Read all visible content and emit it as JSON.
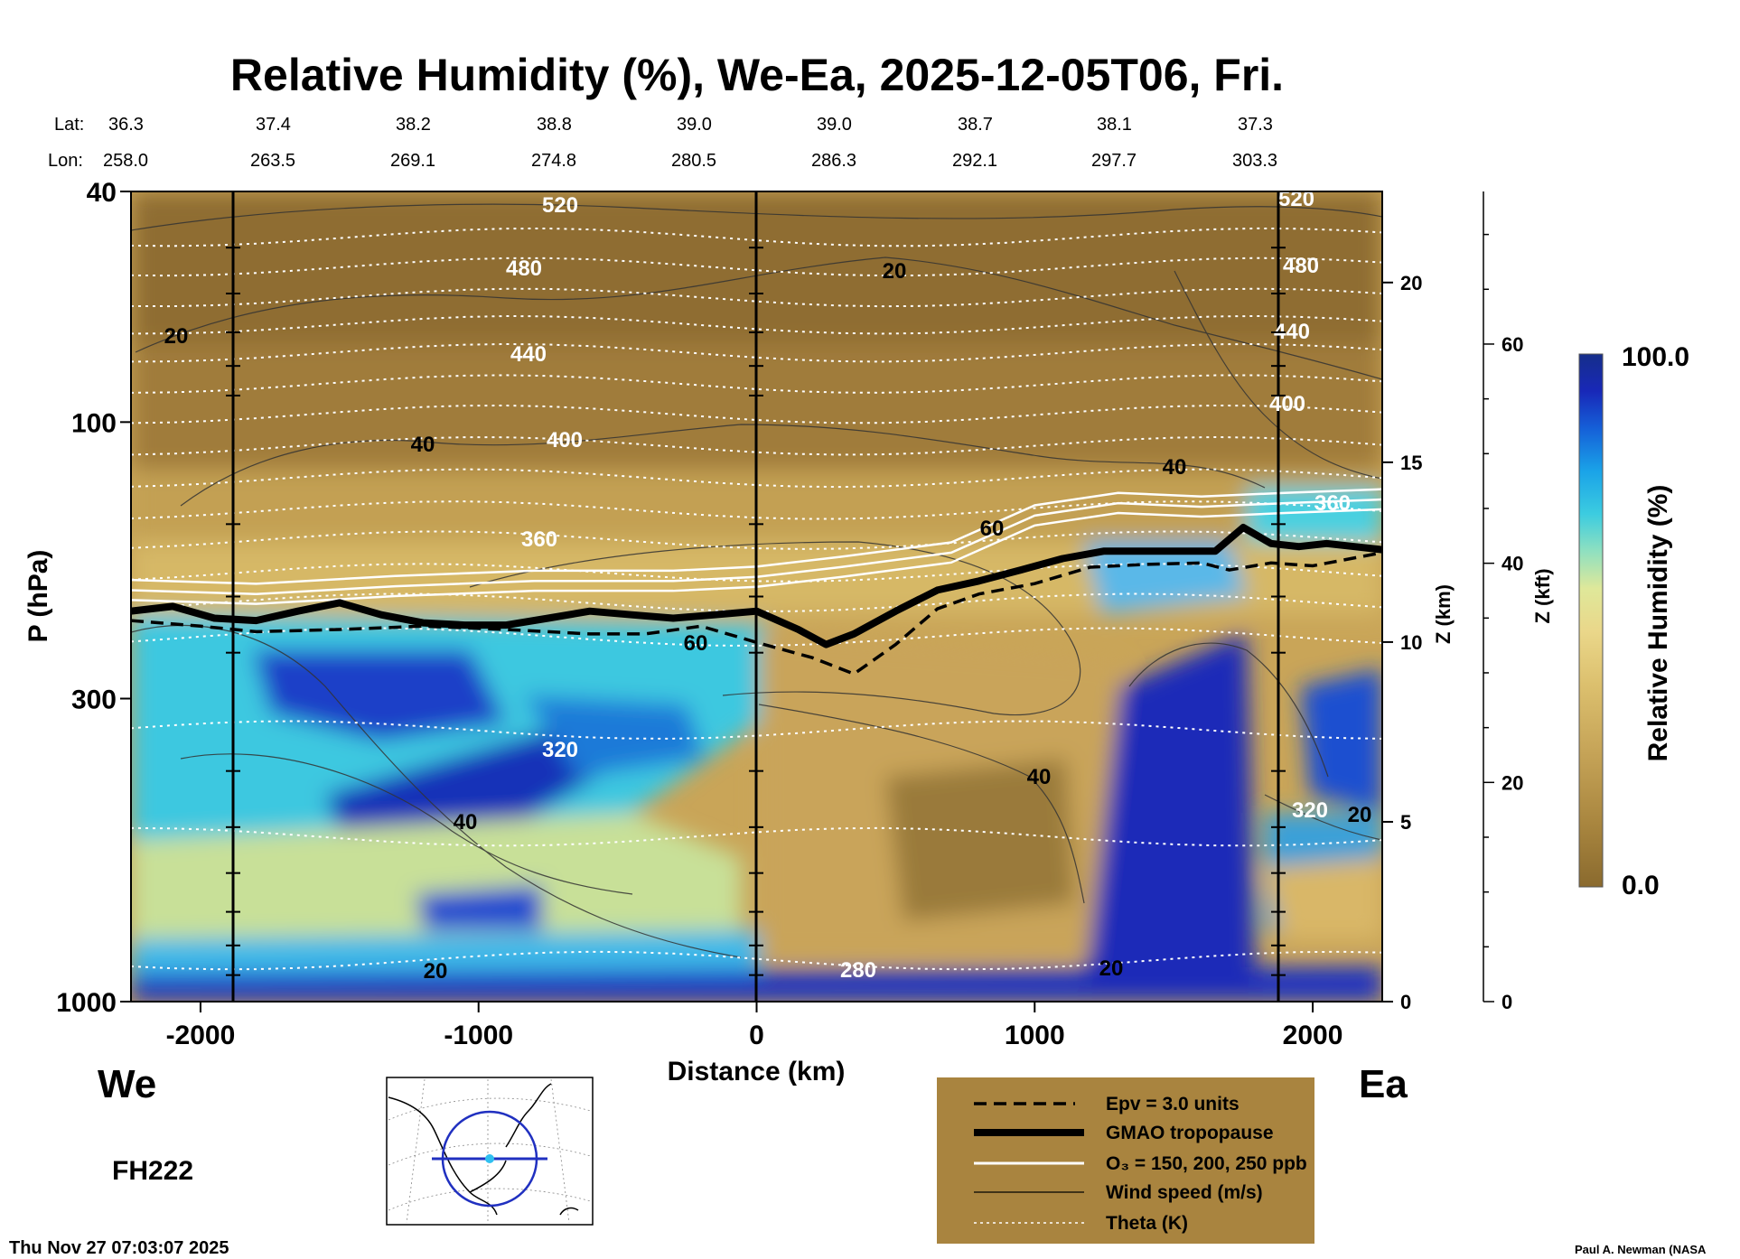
{
  "chart_data": {
    "type": "heatmap",
    "title": "Relative Humidity (%), We-Ea, 2025-12-05T06, Fri.",
    "xlabel": "Distance (km)",
    "ylabel": "P (hPa)",
    "xlim": [
      -2250,
      2250
    ],
    "ylim": [
      1000,
      40
    ],
    "yscale": "log",
    "x_ticks": [
      "-2000",
      "-1000",
      "0",
      "1000",
      "2000"
    ],
    "y_ticks": [
      "40",
      "100",
      "300",
      "1000"
    ],
    "z_km_label": "Z (km)",
    "z_km_ticks": [
      "0",
      "5",
      "10",
      "15",
      "20"
    ],
    "z_kft_label": "Z (kft)",
    "z_kft_ticks": [
      "0",
      "20",
      "40",
      "60"
    ],
    "direction_left": "We",
    "direction_right": "Ea",
    "forecast_hour": "FH222",
    "timestamp": "Thu Nov 27 07:03:07 2025",
    "credit": "Paul A. Newman (NASA",
    "lat_label": "Lat:",
    "lon_label": "Lon:",
    "lat_values": [
      "36.3",
      "37.4",
      "38.2",
      "38.8",
      "39.0",
      "39.0",
      "38.7",
      "38.1",
      "37.3"
    ],
    "lon_values": [
      "258.0",
      "263.5",
      "269.1",
      "274.8",
      "280.5",
      "286.3",
      "292.1",
      "297.7",
      "303.3"
    ],
    "colorbar": {
      "label": "Relative Humidity (%)",
      "max_label": "100.0",
      "min_label": "0.0",
      "colors": [
        "#8a6a2e",
        "#a9863f",
        "#c5a357",
        "#dcc06e",
        "#ead78a",
        "#dfe89a",
        "#8fe0c0",
        "#3ccce0",
        "#1aa3e8",
        "#1560d8",
        "#1828b8",
        "#162e8a"
      ]
    },
    "legend": {
      "entries": [
        "Epv = 3.0 units",
        "GMAO tropopause",
        "O₃ = 150, 200, 250 ppb",
        "Wind speed (m/s)",
        "Theta (K)"
      ],
      "placement": "bottom-center",
      "background": "#a9843f"
    },
    "theta_labels": [
      "520",
      "480",
      "440",
      "400",
      "360",
      "320",
      "280",
      "520",
      "480",
      "440",
      "400",
      "360",
      "320"
    ],
    "wind_labels": [
      "20",
      "40",
      "40",
      "20",
      "20",
      "40",
      "60",
      "60",
      "40",
      "20",
      "20"
    ],
    "tropopause": {
      "x": [
        -2250,
        -2100,
        -1950,
        -1800,
        -1650,
        -1500,
        -1350,
        -1200,
        -1050,
        -900,
        -750,
        -600,
        -450,
        -300,
        -150,
        0,
        150,
        250,
        350,
        500,
        650,
        800,
        950,
        1100,
        1250,
        1400,
        1550,
        1650,
        1750,
        1850,
        1950,
        2050,
        2150,
        2250
      ],
      "p": [
        212,
        208,
        218,
        220,
        212,
        205,
        215,
        222,
        224,
        224,
        218,
        212,
        215,
        218,
        215,
        212,
        228,
        242,
        232,
        212,
        195,
        188,
        180,
        172,
        167,
        167,
        167,
        167,
        152,
        162,
        164,
        162,
        164,
        166
      ]
    },
    "epv": {
      "x": [
        -2250,
        -2000,
        -1800,
        -1500,
        -1200,
        -900,
        -600,
        -400,
        -200,
        0,
        200,
        350,
        500,
        650,
        800,
        1000,
        1200,
        1400,
        1600,
        1700,
        1850,
        2000,
        2250
      ],
      "p": [
        220,
        225,
        230,
        228,
        225,
        228,
        232,
        232,
        225,
        240,
        255,
        272,
        242,
        210,
        198,
        190,
        178,
        176,
        175,
        180,
        175,
        177,
        168
      ]
    },
    "ozone": {
      "x": [
        -2250,
        -1800,
        -1300,
        -800,
        -300,
        0,
        300,
        700,
        1000,
        1300,
        1600,
        1900,
        2250
      ],
      "p": [
        195,
        198,
        192,
        188,
        188,
        185,
        178,
        168,
        145,
        138,
        140,
        138,
        136
      ]
    }
  },
  "locator_map": {
    "description": "inset map with transect"
  }
}
